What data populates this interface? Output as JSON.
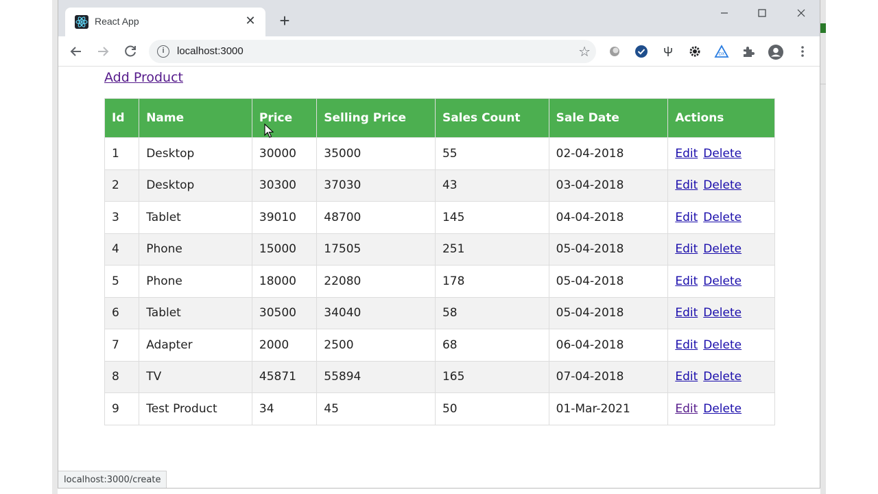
{
  "browser": {
    "tab_title": "React App",
    "url": "localhost:3000",
    "status_url": "localhost:3000/create"
  },
  "page": {
    "add_link": "Add Product"
  },
  "table": {
    "headers": [
      "Id",
      "Name",
      "Price",
      "Selling Price",
      "Sales Count",
      "Sale Date",
      "Actions"
    ],
    "edit_label": "Edit",
    "delete_label": "Delete",
    "rows": [
      {
        "id": "1",
        "name": "Desktop",
        "price": "30000",
        "selling_price": "35000",
        "sales_count": "55",
        "sale_date": "02-04-2018"
      },
      {
        "id": "2",
        "name": "Desktop",
        "price": "30300",
        "selling_price": "37030",
        "sales_count": "43",
        "sale_date": "03-04-2018"
      },
      {
        "id": "3",
        "name": "Tablet",
        "price": "39010",
        "selling_price": "48700",
        "sales_count": "145",
        "sale_date": "04-04-2018"
      },
      {
        "id": "4",
        "name": "Phone",
        "price": "15000",
        "selling_price": "17505",
        "sales_count": "251",
        "sale_date": "05-04-2018"
      },
      {
        "id": "5",
        "name": "Phone",
        "price": "18000",
        "selling_price": "22080",
        "sales_count": "178",
        "sale_date": "05-04-2018"
      },
      {
        "id": "6",
        "name": "Tablet",
        "price": "30500",
        "selling_price": "34040",
        "sales_count": "58",
        "sale_date": "05-04-2018"
      },
      {
        "id": "7",
        "name": "Adapter",
        "price": "2000",
        "selling_price": "2500",
        "sales_count": "68",
        "sale_date": "06-04-2018"
      },
      {
        "id": "8",
        "name": "TV",
        "price": "45871",
        "selling_price": "55894",
        "sales_count": "165",
        "sale_date": "07-04-2018"
      },
      {
        "id": "9",
        "name": "Test Product",
        "price": "34",
        "selling_price": "45",
        "sales_count": "50",
        "sale_date": "01-Mar-2021"
      }
    ]
  },
  "colors": {
    "header_green": "#4caf50",
    "link_blue": "#1a0dab",
    "link_visited": "#551a8b"
  }
}
